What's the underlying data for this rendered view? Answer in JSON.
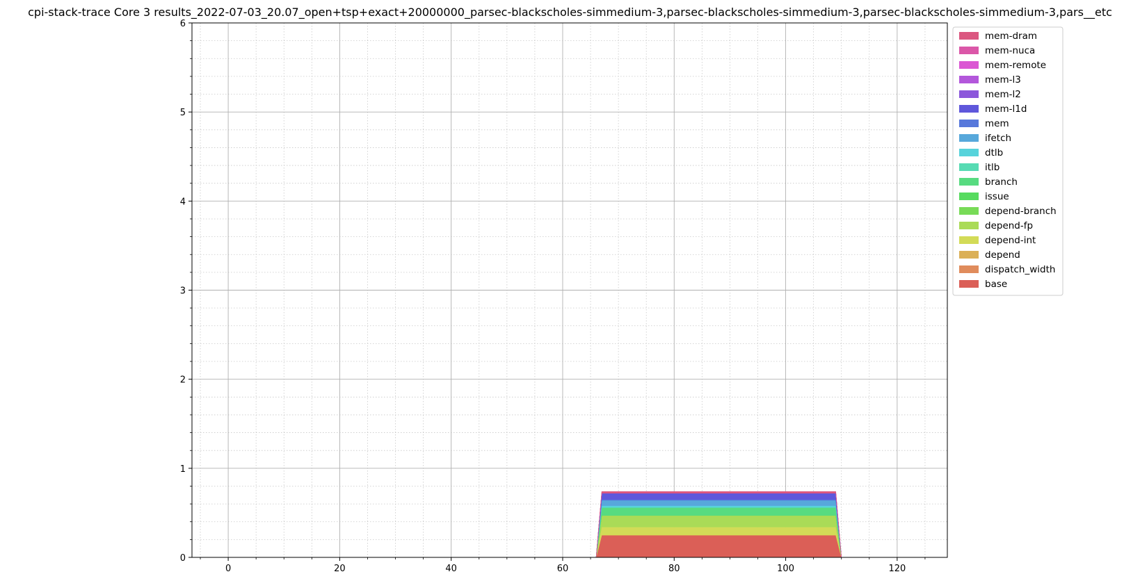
{
  "chart_data": {
    "type": "area",
    "title": "cpi-stack-trace Core 3 results_2022-07-03_20.07_open+tsp+exact+20000000_parsec-blackscholes-simmedium-3,parsec-blackscholes-simmedium-3,parsec-blackscholes-simmedium-3,pars__etc",
    "xlabel": "",
    "ylabel": "",
    "xlim": [
      -6.5,
      129
    ],
    "ylim": [
      0,
      6
    ],
    "x_ticks": [
      "0",
      "20",
      "40",
      "60",
      "80",
      "100",
      "120"
    ],
    "y_ticks": [
      "0",
      "1",
      "2",
      "3",
      "4",
      "5",
      "6"
    ],
    "grid": true,
    "minor_grid": true,
    "legend_position": "outside-top-right",
    "x": [
      66,
      67,
      109,
      110
    ],
    "series": [
      {
        "name": "base",
        "color": "#db5f57",
        "values": [
          0,
          0.25,
          0.25,
          0
        ]
      },
      {
        "name": "dispatch_width",
        "color": "#e08c5c",
        "values": [
          0,
          0.0,
          0.0,
          0
        ]
      },
      {
        "name": "depend",
        "color": "#dbb057",
        "values": [
          0,
          0.0,
          0.0,
          0
        ]
      },
      {
        "name": "depend-int",
        "color": "#d3db57",
        "values": [
          0,
          0.09,
          0.09,
          0
        ]
      },
      {
        "name": "depend-fp",
        "color": "#aadb57",
        "values": [
          0,
          0.13,
          0.13,
          0
        ]
      },
      {
        "name": "depend-branch",
        "color": "#78db57",
        "values": [
          0,
          0.0,
          0.0,
          0
        ]
      },
      {
        "name": "issue",
        "color": "#57db5f",
        "values": [
          0,
          0.0,
          0.0,
          0
        ]
      },
      {
        "name": "branch",
        "color": "#57db80",
        "values": [
          0,
          0.09,
          0.09,
          0
        ]
      },
      {
        "name": "itlb",
        "color": "#57dbb3",
        "values": [
          0,
          0.0,
          0.0,
          0
        ]
      },
      {
        "name": "dtlb",
        "color": "#57d3db",
        "values": [
          0,
          0.02,
          0.02,
          0
        ]
      },
      {
        "name": "ifetch",
        "color": "#57a8db",
        "values": [
          0,
          0.06,
          0.06,
          0
        ]
      },
      {
        "name": "mem",
        "color": "#5778db",
        "values": [
          0,
          0.01,
          0.01,
          0
        ]
      },
      {
        "name": "mem-l1d",
        "color": "#5f57db",
        "values": [
          0,
          0.07,
          0.07,
          0
        ]
      },
      {
        "name": "mem-l2",
        "color": "#8c57db",
        "values": [
          0,
          0.0,
          0.0,
          0
        ]
      },
      {
        "name": "mem-l3",
        "color": "#b357db",
        "values": [
          0,
          0.0,
          0.0,
          0
        ]
      },
      {
        "name": "mem-remote",
        "color": "#db57d3",
        "values": [
          0,
          0.0,
          0.0,
          0
        ]
      },
      {
        "name": "mem-nuca",
        "color": "#db57a8",
        "values": [
          0,
          0.0,
          0.0,
          0
        ]
      },
      {
        "name": "mem-dram",
        "color": "#db5780",
        "values": [
          0,
          0.02,
          0.02,
          0
        ]
      }
    ],
    "legend_order": [
      "mem-dram",
      "mem-nuca",
      "mem-remote",
      "mem-l3",
      "mem-l2",
      "mem-l1d",
      "mem",
      "ifetch",
      "dtlb",
      "itlb",
      "branch",
      "issue",
      "depend-branch",
      "depend-fp",
      "depend-int",
      "depend",
      "dispatch_width",
      "base"
    ]
  }
}
